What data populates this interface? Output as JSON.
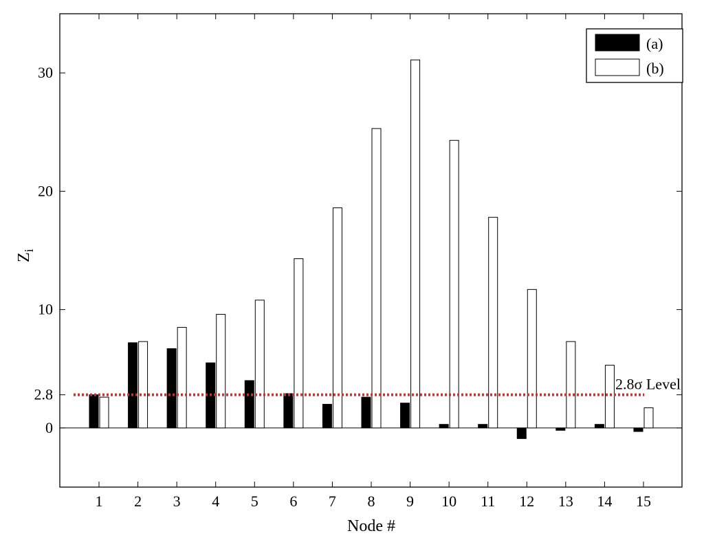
{
  "chart_data": {
    "type": "bar",
    "categories": [
      "1",
      "2",
      "3",
      "4",
      "5",
      "6",
      "7",
      "8",
      "9",
      "10",
      "11",
      "12",
      "13",
      "14",
      "15"
    ],
    "series": [
      {
        "name": "(a)",
        "color": "#000000",
        "values": [
          2.8,
          7.2,
          6.7,
          5.5,
          4.0,
          2.9,
          2.0,
          2.6,
          2.1,
          0.3,
          0.3,
          -0.9,
          -0.2,
          0.3,
          -0.3
        ]
      },
      {
        "name": "(b)",
        "color": "#ffffff",
        "values": [
          2.6,
          7.3,
          8.5,
          9.6,
          10.8,
          14.3,
          18.6,
          25.3,
          31.1,
          24.3,
          17.8,
          11.7,
          7.3,
          5.3,
          1.7
        ]
      }
    ],
    "xlabel": "Node #",
    "ylabel": "Z",
    "ylabel_subscript": "i",
    "ylim": [
      -5,
      35
    ],
    "yticks": [
      0,
      2.8,
      10,
      20,
      30
    ],
    "ytick_labels": [
      "0",
      "2.8",
      "10",
      "20",
      "30"
    ],
    "zero_line": true,
    "threshold": {
      "value": 2.8,
      "label": "2.8σ Level",
      "color": "#e8261c",
      "style": "dotted"
    },
    "legend_position": "top-right",
    "grid": false
  }
}
